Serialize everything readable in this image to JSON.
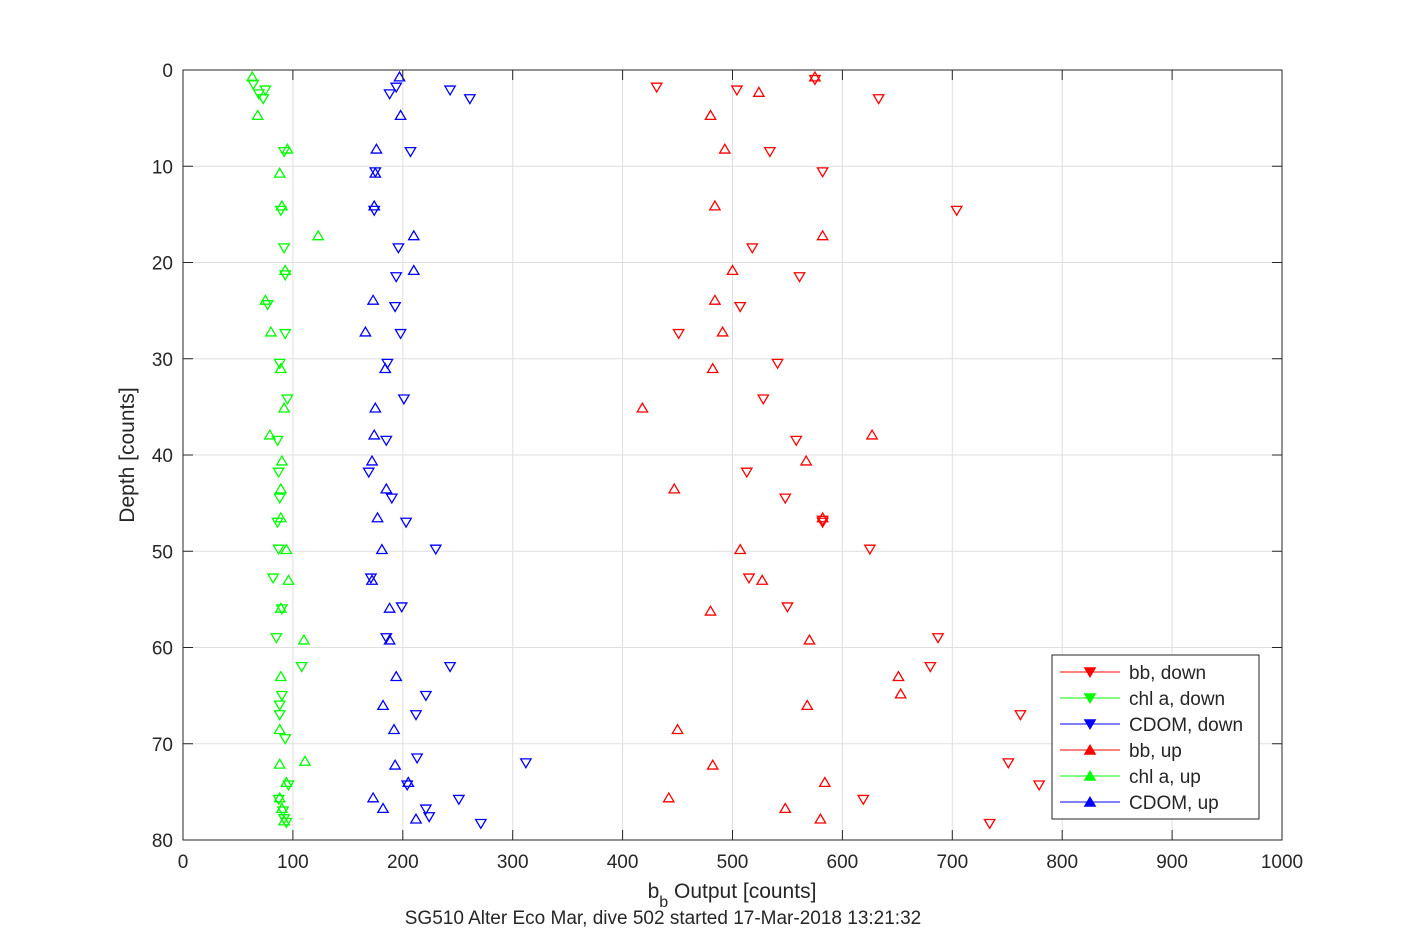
{
  "chart_data": {
    "type": "scatter",
    "xlabel": {
      "prefix": "b",
      "subscript": "b",
      "suffix": " Output [counts]"
    },
    "ylabel": "Depth [counts]",
    "caption": "SG510 Alter Eco Mar, dive 502 started 17-Mar-2018 13:21:32",
    "xlim": [
      0,
      1000
    ],
    "ylim": [
      0,
      80
    ],
    "y_reversed": true,
    "grid": true,
    "legend_position": "bottom-right",
    "x_ticks": [
      0,
      100,
      200,
      300,
      400,
      500,
      600,
      700,
      800,
      900,
      1000
    ],
    "y_ticks": [
      0,
      10,
      20,
      30,
      40,
      50,
      60,
      70,
      80
    ],
    "series": [
      {
        "name": "bb, down",
        "color": "#ff0000",
        "marker": "triangle-down",
        "points": [
          [
            575,
            1
          ],
          [
            431,
            1.8
          ],
          [
            504,
            2.1
          ],
          [
            633,
            3
          ],
          [
            534,
            8.5
          ],
          [
            582,
            10.6
          ],
          [
            704,
            14.6
          ],
          [
            518,
            18.5
          ],
          [
            561,
            21.5
          ],
          [
            507,
            24.6
          ],
          [
            451,
            27.4
          ],
          [
            541,
            30.5
          ],
          [
            528,
            34.2
          ],
          [
            558,
            38.5
          ],
          [
            513,
            41.8
          ],
          [
            548,
            44.5
          ],
          [
            582,
            46.8
          ],
          [
            625,
            49.8
          ],
          [
            515,
            52.8
          ],
          [
            550,
            55.8
          ],
          [
            687,
            59
          ],
          [
            680,
            62
          ],
          [
            762,
            67
          ],
          [
            751,
            72
          ],
          [
            779,
            74.3
          ],
          [
            619,
            75.8
          ],
          [
            734,
            78.3
          ],
          [
            582,
            47
          ]
        ]
      },
      {
        "name": "chl a, down",
        "color": "#00ff00",
        "marker": "triangle-down",
        "points": [
          [
            64,
            1.5
          ],
          [
            75,
            2.1
          ],
          [
            69,
            2.5
          ],
          [
            73,
            3
          ],
          [
            92,
            8.5
          ],
          [
            89,
            14.6
          ],
          [
            92,
            18.5
          ],
          [
            93,
            21.3
          ],
          [
            77,
            24.4
          ],
          [
            93,
            27.4
          ],
          [
            88,
            30.5
          ],
          [
            95,
            34.2
          ],
          [
            86,
            38.5
          ],
          [
            87,
            41.8
          ],
          [
            88,
            44.5
          ],
          [
            86,
            47
          ],
          [
            87,
            49.8
          ],
          [
            82,
            52.8
          ],
          [
            90,
            56
          ],
          [
            85,
            59
          ],
          [
            108,
            62
          ],
          [
            90,
            65
          ],
          [
            88,
            66
          ],
          [
            88,
            67
          ],
          [
            93,
            69.5
          ],
          [
            96,
            74.3
          ],
          [
            87,
            75.8
          ],
          [
            91,
            77
          ],
          [
            94,
            78.2
          ],
          [
            92,
            77.8
          ]
        ]
      },
      {
        "name": "CDOM, down",
        "color": "#0000ff",
        "marker": "triangle-down",
        "points": [
          [
            194,
            1.8
          ],
          [
            243,
            2.1
          ],
          [
            188,
            2.5
          ],
          [
            261,
            3
          ],
          [
            207,
            8.5
          ],
          [
            175,
            10.6
          ],
          [
            174,
            14.6
          ],
          [
            196,
            18.5
          ],
          [
            194,
            21.5
          ],
          [
            193,
            24.6
          ],
          [
            198,
            27.4
          ],
          [
            186,
            30.5
          ],
          [
            201,
            34.2
          ],
          [
            185,
            38.5
          ],
          [
            169,
            41.8
          ],
          [
            190,
            44.5
          ],
          [
            203,
            47
          ],
          [
            230,
            49.8
          ],
          [
            171,
            52.8
          ],
          [
            199,
            55.8
          ],
          [
            185,
            59
          ],
          [
            243,
            62
          ],
          [
            221,
            65
          ],
          [
            212,
            67
          ],
          [
            213,
            71.5
          ],
          [
            204,
            74.3
          ],
          [
            251,
            75.8
          ],
          [
            221,
            76.8
          ],
          [
            224,
            77.6
          ],
          [
            271,
            78.3
          ],
          [
            312,
            72
          ]
        ]
      },
      {
        "name": "bb, up",
        "color": "#ff0000",
        "marker": "triangle-up",
        "points": [
          [
            575,
            0.7
          ],
          [
            524,
            2.3
          ],
          [
            480,
            4.7
          ],
          [
            493,
            8.2
          ],
          [
            484,
            14.1
          ],
          [
            582,
            17.2
          ],
          [
            500,
            20.8
          ],
          [
            484,
            23.9
          ],
          [
            491,
            27.2
          ],
          [
            482,
            31
          ],
          [
            418,
            35.1
          ],
          [
            627,
            37.9
          ],
          [
            567,
            40.6
          ],
          [
            447,
            43.5
          ],
          [
            582,
            46.5
          ],
          [
            507,
            49.8
          ],
          [
            527,
            53
          ],
          [
            480,
            56.2
          ],
          [
            570,
            59.2
          ],
          [
            651,
            63
          ],
          [
            653,
            64.8
          ],
          [
            568,
            66
          ],
          [
            450,
            68.5
          ],
          [
            482,
            72.2
          ],
          [
            584,
            74
          ],
          [
            442,
            75.6
          ],
          [
            548,
            76.7
          ],
          [
            580,
            77.8
          ]
        ]
      },
      {
        "name": "chl a, up",
        "color": "#00ff00",
        "marker": "triangle-up",
        "points": [
          [
            63,
            0.7
          ],
          [
            68,
            4.7
          ],
          [
            95,
            8.2
          ],
          [
            88,
            10.7
          ],
          [
            90,
            14.1
          ],
          [
            123,
            17.2
          ],
          [
            93,
            20.8
          ],
          [
            75,
            23.9
          ],
          [
            80,
            27.2
          ],
          [
            89,
            31
          ],
          [
            92,
            35.1
          ],
          [
            79,
            37.9
          ],
          [
            90,
            40.6
          ],
          [
            89,
            43.5
          ],
          [
            89,
            46.5
          ],
          [
            94,
            49.8
          ],
          [
            96,
            53
          ],
          [
            89,
            55.9
          ],
          [
            110,
            59.2
          ],
          [
            89,
            63
          ],
          [
            88,
            68.5
          ],
          [
            111,
            71.8
          ],
          [
            88,
            72.1
          ],
          [
            94,
            74
          ],
          [
            88,
            75.6
          ],
          [
            90,
            76.7
          ],
          [
            92,
            78
          ]
        ]
      },
      {
        "name": "CDOM, up",
        "color": "#0000ff",
        "marker": "triangle-up",
        "points": [
          [
            197,
            0.7
          ],
          [
            198,
            4.7
          ],
          [
            176,
            8.2
          ],
          [
            175,
            10.7
          ],
          [
            174,
            14.1
          ],
          [
            210,
            17.2
          ],
          [
            210,
            20.8
          ],
          [
            173,
            23.9
          ],
          [
            166,
            27.2
          ],
          [
            184,
            31
          ],
          [
            175,
            35.1
          ],
          [
            174,
            37.9
          ],
          [
            172,
            40.6
          ],
          [
            185,
            43.5
          ],
          [
            177,
            46.5
          ],
          [
            181,
            49.8
          ],
          [
            172,
            53
          ],
          [
            188,
            55.9
          ],
          [
            188,
            59.2
          ],
          [
            194,
            63
          ],
          [
            182,
            66
          ],
          [
            192,
            68.5
          ],
          [
            193,
            72.2
          ],
          [
            205,
            74
          ],
          [
            173,
            75.6
          ],
          [
            182,
            76.7
          ],
          [
            212,
            77.8
          ]
        ]
      }
    ]
  }
}
